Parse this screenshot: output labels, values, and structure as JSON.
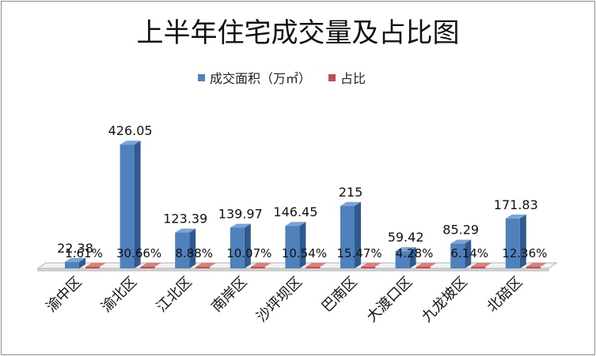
{
  "chart_data": {
    "type": "bar",
    "title": "上半年住宅成交量及占比图",
    "categories": [
      "渝中区",
      "渝北区",
      "江北区",
      "南岸区",
      "沙坪坝区",
      "巴南区",
      "大渡口区",
      "九龙坡区",
      "北碚区"
    ],
    "series": [
      {
        "name": "成交面积（万㎡）",
        "values": [
          22.38,
          426.05,
          123.39,
          139.97,
          146.45,
          215,
          59.42,
          85.29,
          171.83
        ],
        "labels": [
          "22.38",
          "426.05",
          "123.39",
          "139.97",
          "146.45",
          "215",
          "59.42",
          "85.29",
          "171.83"
        ],
        "color": "#4f81bd"
      },
      {
        "name": "占比",
        "values": [
          1.61,
          30.66,
          8.88,
          10.07,
          10.54,
          15.47,
          4.28,
          6.14,
          12.36
        ],
        "labels": [
          "1.61%",
          "30.66%",
          "8.88%",
          "10.07%",
          "10.54%",
          "15.47%",
          "4.28%",
          "6.14%",
          "12.36%"
        ],
        "color": "#c0504d"
      }
    ],
    "legend_position": "top",
    "grid": false,
    "ylim": [
      0,
      450
    ]
  }
}
